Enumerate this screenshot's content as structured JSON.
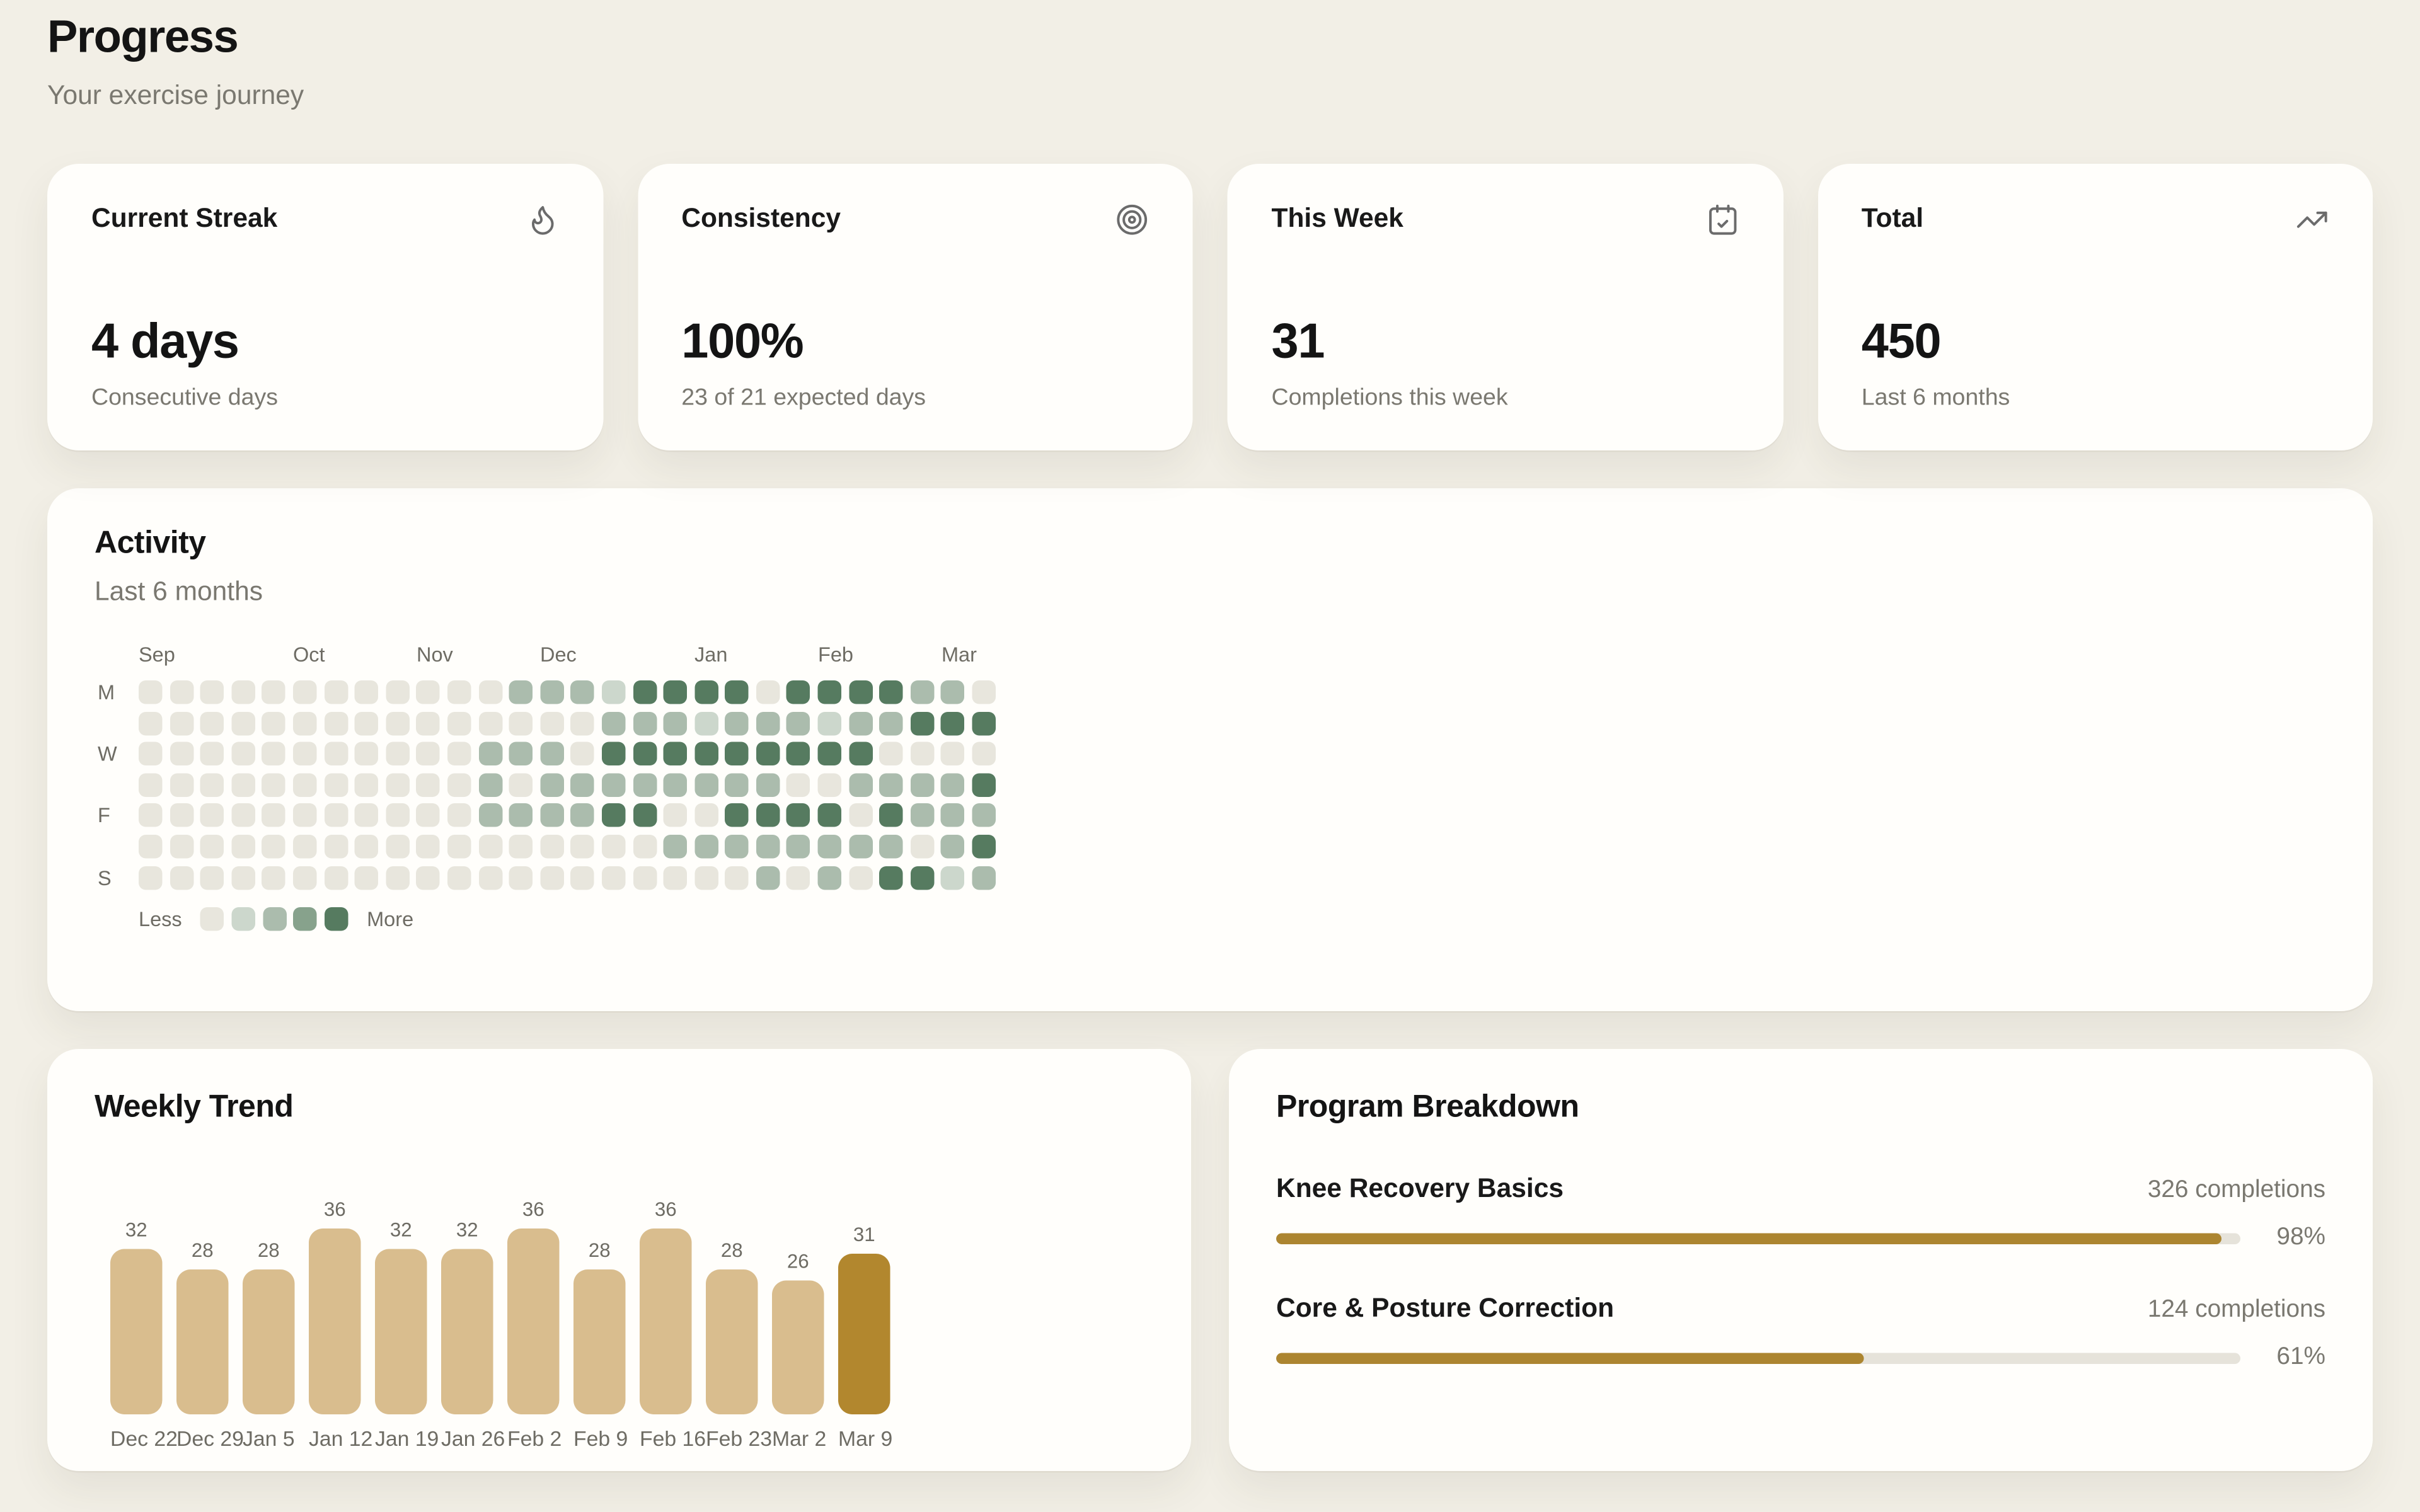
{
  "page": {
    "title": "Progress",
    "subtitle": "Your exercise journey"
  },
  "stats": [
    {
      "label": "Current Streak",
      "icon": "flame-icon",
      "value": "4 days",
      "sub": "Consecutive days"
    },
    {
      "label": "Consistency",
      "icon": "target-icon",
      "value": "100%",
      "sub": "23 of 21 expected days"
    },
    {
      "label": "This Week",
      "icon": "calendar-check-icon",
      "value": "31",
      "sub": "Completions this week"
    },
    {
      "label": "Total",
      "icon": "trending-up-icon",
      "value": "450",
      "sub": "Last 6 months"
    }
  ],
  "activity": {
    "title": "Activity",
    "subtitle": "Last 6 months",
    "months": [
      {
        "label": "Sep",
        "col": 1
      },
      {
        "label": "Oct",
        "col": 6
      },
      {
        "label": "Nov",
        "col": 10
      },
      {
        "label": "Dec",
        "col": 14
      },
      {
        "label": "Jan",
        "col": 19
      },
      {
        "label": "Feb",
        "col": 23
      },
      {
        "label": "Mar",
        "col": 27
      }
    ],
    "day_labels": [
      "M",
      "",
      "W",
      "",
      "F",
      "",
      "S"
    ],
    "legend": {
      "less": "Less",
      "more": "More"
    },
    "level_colors": [
      "#e8e6dd",
      "#ccd7cc",
      "#abbcad",
      "#87a28c",
      "#567b60"
    ],
    "grid": [
      [
        0,
        0,
        0,
        0,
        0,
        0,
        0,
        0,
        0,
        0,
        0,
        0,
        2,
        2,
        2,
        1,
        4,
        4,
        4,
        4,
        0,
        4,
        4,
        4,
        4,
        2,
        2,
        0
      ],
      [
        0,
        0,
        0,
        0,
        0,
        0,
        0,
        0,
        0,
        0,
        0,
        0,
        0,
        0,
        0,
        2,
        2,
        2,
        1,
        2,
        2,
        2,
        1,
        2,
        2,
        4,
        4,
        4
      ],
      [
        0,
        0,
        0,
        0,
        0,
        0,
        0,
        0,
        0,
        0,
        0,
        2,
        2,
        2,
        0,
        4,
        4,
        4,
        4,
        4,
        4,
        4,
        4,
        4,
        0,
        0,
        0,
        0
      ],
      [
        0,
        0,
        0,
        0,
        0,
        0,
        0,
        0,
        0,
        0,
        0,
        2,
        0,
        2,
        2,
        2,
        2,
        2,
        2,
        2,
        2,
        0,
        0,
        2,
        2,
        2,
        2,
        4
      ],
      [
        0,
        0,
        0,
        0,
        0,
        0,
        0,
        0,
        0,
        0,
        0,
        2,
        2,
        2,
        2,
        4,
        4,
        0,
        0,
        4,
        4,
        4,
        4,
        0,
        4,
        2,
        2,
        2
      ],
      [
        0,
        0,
        0,
        0,
        0,
        0,
        0,
        0,
        0,
        0,
        0,
        0,
        0,
        0,
        0,
        0,
        0,
        2,
        2,
        2,
        2,
        2,
        2,
        2,
        2,
        0,
        2,
        4
      ],
      [
        0,
        0,
        0,
        0,
        0,
        0,
        0,
        0,
        0,
        0,
        0,
        0,
        0,
        0,
        0,
        0,
        0,
        0,
        0,
        0,
        2,
        0,
        2,
        0,
        4,
        4,
        1,
        2
      ]
    ]
  },
  "chart_data": {
    "type": "bar",
    "title": "Weekly Trend",
    "categories": [
      "Dec 22",
      "Dec 29",
      "Jan 5",
      "Jan 12",
      "Jan 19",
      "Jan 26",
      "Feb 2",
      "Feb 9",
      "Feb 16",
      "Feb 23",
      "Mar 2",
      "Mar 9"
    ],
    "values": [
      32,
      28,
      28,
      36,
      32,
      32,
      36,
      28,
      36,
      28,
      26,
      31
    ],
    "highlight_index": 11,
    "bar_color": "#d9bd8e",
    "highlight_color": "#b2872e",
    "xlabel": "",
    "ylabel": "",
    "ylim": [
      0,
      36
    ],
    "grid": "off",
    "value_labels": "on"
  },
  "programs": {
    "title": "Program Breakdown",
    "bar_fill": "#ac8530",
    "bar_track": "#e6e3da",
    "items": [
      {
        "name": "Knee Recovery Basics",
        "completions": "326 completions",
        "percent": 98,
        "percent_label": "98%"
      },
      {
        "name": "Core & Posture Correction",
        "completions": "124 completions",
        "percent": 61,
        "percent_label": "61%"
      }
    ]
  }
}
